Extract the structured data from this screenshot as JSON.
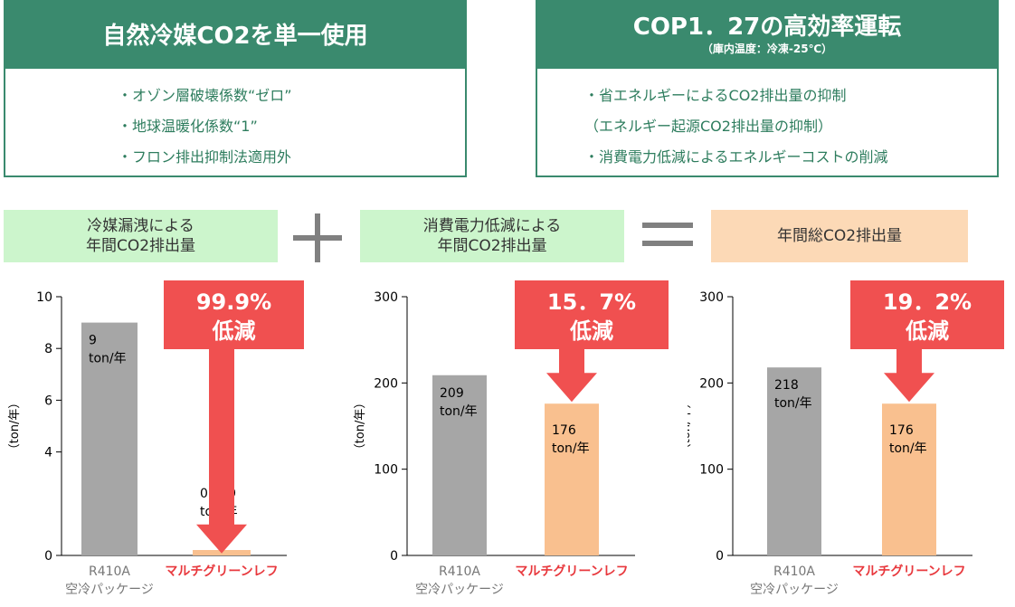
{
  "features": {
    "left": {
      "title": "自然冷媒CO2を単一使用",
      "items": [
        "・オゾン層破壊係数“ゼロ”",
        "・地球温暖化係数“1”",
        "・フロン排出抑制法適用外"
      ]
    },
    "right": {
      "title": "COP1．27の高効率運転",
      "subtitle": "（庫内温度：冷凍-25℃）",
      "items": [
        "・省エネルギーによるCO2排出量の抑制",
        "（エネルギー起源CO2排出量の抑制）",
        "・消費電力低減によるエネルギーコストの削減"
      ]
    }
  },
  "equation": {
    "term1": [
      "冷媒漏洩による",
      "年間CO2排出量"
    ],
    "plus": "＋",
    "term2": [
      "消費電力低減による",
      "年間CO2排出量"
    ],
    "equals": "＝",
    "result": "年間総CO2排出量"
  },
  "colors": {
    "green": "#3a8a6e",
    "light_green": "#ccf5cc",
    "peach": "#fcd9b6",
    "gray_bar": "#a6a6a6",
    "orange_bar": "#f9c08f",
    "red": "#f05050",
    "brand_red": "#e8383d"
  },
  "chart_data": [
    {
      "type": "bar",
      "ylabel": "（ton/年）",
      "ylim": [
        0,
        10
      ],
      "yticks": [
        0,
        4,
        6,
        8,
        10
      ],
      "categories": [
        "R410A\n空冷パッケージ",
        "マルチグリーンレフ"
      ],
      "values": [
        9,
        0.009
      ],
      "data_labels": [
        [
          "9",
          "ton/年"
        ],
        [
          "0.009",
          "ton/年"
        ]
      ],
      "reduction": [
        "99.9%",
        "低減"
      ]
    },
    {
      "type": "bar",
      "ylabel": "（ton/年）",
      "ylim": [
        0,
        300
      ],
      "yticks": [
        0,
        100,
        200,
        300
      ],
      "categories": [
        "R410A\n空冷パッケージ",
        "マルチグリーンレフ"
      ],
      "values": [
        209,
        176
      ],
      "data_labels": [
        [
          "209",
          "ton/年"
        ],
        [
          "176",
          "ton/年"
        ]
      ],
      "reduction": [
        "15．7%",
        "低減"
      ]
    },
    {
      "type": "bar",
      "ylabel": "（ton/年）",
      "ylim": [
        0,
        300
      ],
      "yticks": [
        0,
        100,
        200,
        300
      ],
      "categories": [
        "R410A\n空冷パッケージ",
        "マルチグリーンレフ"
      ],
      "values": [
        218,
        176
      ],
      "data_labels": [
        [
          "218",
          "ton/年"
        ],
        [
          "176",
          "ton/年"
        ]
      ],
      "reduction": [
        "19．2%",
        "低減"
      ]
    }
  ]
}
